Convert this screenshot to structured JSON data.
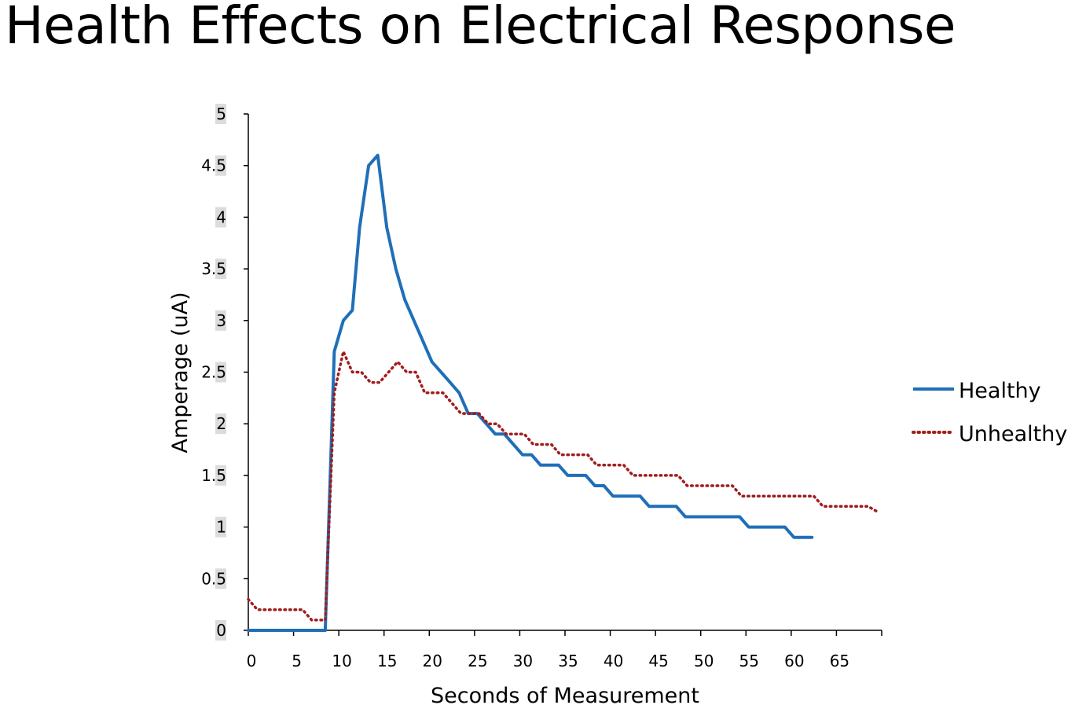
{
  "page": {
    "title": "Health Effects on Electrical Response"
  },
  "colors": {
    "healthy": "#1f6fb8",
    "unhealthy": "#a11d1d",
    "tick_label_background": "#dcdcdc"
  },
  "chart_data": {
    "type": "line",
    "title": "",
    "xlabel": "Seconds of Measurement",
    "ylabel": "Amperage (uA)",
    "xlim": [
      0,
      70
    ],
    "ylim": [
      0,
      5
    ],
    "xticks": [
      "0",
      "5",
      "10",
      "15",
      "20",
      "25",
      "30",
      "35",
      "40",
      "45",
      "50",
      "55",
      "60",
      "65"
    ],
    "yticks": [
      "0",
      "0.5",
      "1",
      "1.5",
      "2",
      "2.5",
      "3",
      "3.5",
      "4",
      "4.5",
      "5"
    ],
    "grid": false,
    "legend_position": "right",
    "series": [
      {
        "name": "Healthy",
        "style": "solid",
        "x": [
          0,
          1,
          2,
          3,
          4,
          5,
          6,
          7,
          8,
          8.5,
          9.5,
          10.5,
          11.5,
          12.3,
          13.3,
          14.3,
          15.3,
          16.3,
          17.3,
          18.3,
          19.3,
          20.3,
          21.3,
          22.3,
          23.3,
          24.3,
          25.3,
          26.3,
          27.3,
          28.3,
          29.3,
          30.3,
          31.3,
          32.3,
          33.3,
          34.3,
          35.3,
          36.3,
          37.3,
          38.3,
          39.3,
          40.3,
          41.3,
          42.3,
          43.3,
          44.3,
          45.3,
          46.3,
          47.3,
          48.3,
          49.3,
          50.3,
          51.3,
          52.3,
          53.3,
          54.3,
          55.3,
          56.3,
          57.3,
          58.3,
          59.3,
          60.3,
          61.3,
          62.3
        ],
        "y": [
          0,
          0,
          0,
          0,
          0,
          0,
          0,
          0,
          0,
          0,
          2.7,
          3.0,
          3.1,
          3.9,
          4.5,
          4.6,
          3.9,
          3.5,
          3.2,
          3.0,
          2.8,
          2.6,
          2.5,
          2.4,
          2.3,
          2.1,
          2.1,
          2.0,
          1.9,
          1.9,
          1.8,
          1.7,
          1.7,
          1.6,
          1.6,
          1.6,
          1.5,
          1.5,
          1.5,
          1.4,
          1.4,
          1.3,
          1.3,
          1.3,
          1.3,
          1.2,
          1.2,
          1.2,
          1.2,
          1.1,
          1.1,
          1.1,
          1.1,
          1.1,
          1.1,
          1.1,
          1.0,
          1.0,
          1.0,
          1.0,
          1.0,
          0.9,
          0.9,
          0.9
        ]
      },
      {
        "name": "Unhealthy",
        "style": "dotted",
        "x": [
          0,
          1,
          2,
          3,
          4,
          5,
          6,
          7,
          8,
          8.5,
          9.5,
          10.5,
          11.5,
          12.5,
          13.5,
          14.5,
          15.5,
          16.5,
          17.5,
          18.5,
          19.5,
          20.5,
          21.5,
          22.5,
          23.5,
          24.5,
          25.5,
          26.5,
          27.5,
          28.5,
          29.5,
          30.5,
          31.5,
          32.5,
          33.5,
          34.5,
          35.5,
          36.5,
          37.5,
          38.5,
          39.5,
          40.5,
          41.5,
          42.5,
          43.5,
          44.5,
          45.5,
          46.5,
          47.5,
          48.5,
          49.5,
          50.5,
          51.5,
          52.5,
          53.5,
          54.5,
          55.5,
          56.5,
          57.5,
          58.5,
          59.5,
          60.5,
          61.5,
          62.5,
          63.5,
          64.5,
          65.5,
          66.5,
          67.5,
          68.5,
          69.5
        ],
        "y": [
          0.3,
          0.2,
          0.2,
          0.2,
          0.2,
          0.2,
          0.2,
          0.1,
          0.1,
          0.1,
          2.3,
          2.7,
          2.5,
          2.5,
          2.4,
          2.4,
          2.5,
          2.6,
          2.5,
          2.5,
          2.3,
          2.3,
          2.3,
          2.2,
          2.1,
          2.1,
          2.1,
          2.0,
          2.0,
          1.9,
          1.9,
          1.9,
          1.8,
          1.8,
          1.8,
          1.7,
          1.7,
          1.7,
          1.7,
          1.6,
          1.6,
          1.6,
          1.6,
          1.5,
          1.5,
          1.5,
          1.5,
          1.5,
          1.5,
          1.4,
          1.4,
          1.4,
          1.4,
          1.4,
          1.4,
          1.3,
          1.3,
          1.3,
          1.3,
          1.3,
          1.3,
          1.3,
          1.3,
          1.3,
          1.2,
          1.2,
          1.2,
          1.2,
          1.2,
          1.2,
          1.15
        ]
      }
    ]
  }
}
